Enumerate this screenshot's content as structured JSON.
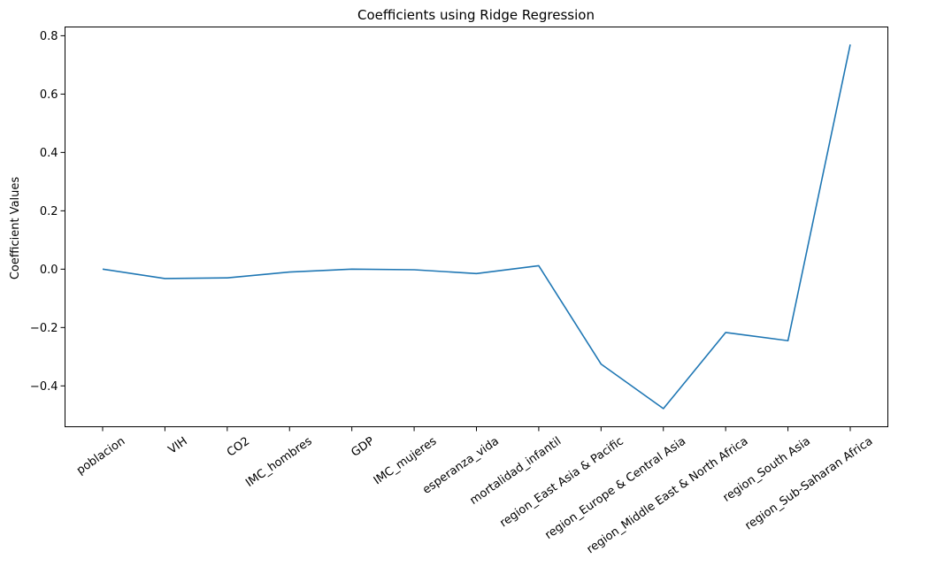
{
  "chart_data": {
    "type": "line",
    "title": "Coefficients using Ridge Regression",
    "xlabel": "",
    "ylabel": "Coefficient Values",
    "categories": [
      "poblacion",
      "VIH",
      "CO2",
      "IMC_hombres",
      "GDP",
      "IMC_mujeres",
      "esperanza_vida",
      "mortalidad_infantil",
      "region_East Asia & Pacific",
      "region_Europe & Central Asia",
      "region_Middle East & North Africa",
      "region_South Asia",
      "region_Sub-Saharan Africa"
    ],
    "series": [
      {
        "name": "Coefficients",
        "color": "#1f77b4",
        "values": [
          0.0,
          -0.032,
          -0.03,
          -0.01,
          0.0,
          -0.002,
          -0.015,
          0.012,
          -0.325,
          -0.478,
          -0.217,
          -0.245,
          0.77
        ]
      }
    ],
    "ylim": [
      -0.54,
      0.83
    ],
    "yticks": [
      -0.4,
      -0.2,
      0.0,
      0.2,
      0.4,
      0.6,
      0.8
    ],
    "ytick_labels": [
      "−0.4",
      "−0.2",
      "0.0",
      "0.2",
      "0.4",
      "0.6",
      "0.8"
    ],
    "grid": false,
    "legend": "none"
  }
}
